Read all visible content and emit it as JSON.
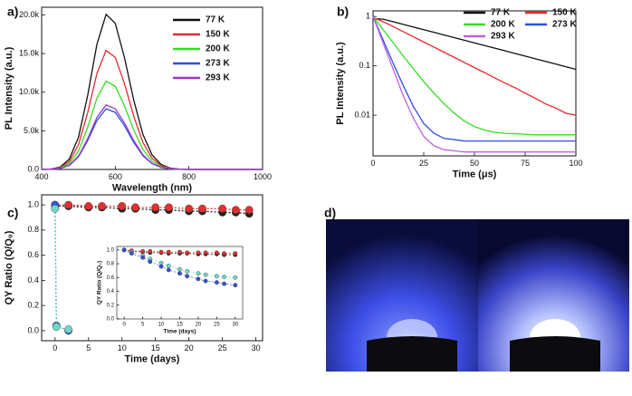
{
  "chart_data": [
    {
      "type": "line",
      "label": "a)",
      "x_label": "Wavelength (nm)",
      "y_label": "PL Intensity (a.u.)",
      "x": [
        400,
        425,
        450,
        475,
        500,
        525,
        550,
        575,
        600,
        625,
        650,
        675,
        700,
        725,
        750,
        775,
        800,
        825,
        850,
        875,
        900,
        925,
        950,
        975,
        1000
      ],
      "xlim": [
        400,
        1000
      ],
      "xticks": [
        400,
        600,
        800,
        1000
      ],
      "ylim": [
        0,
        21000
      ],
      "yticks": [
        {
          "value": 0,
          "label": "0.0"
        },
        {
          "value": 5000,
          "label": "5.0k"
        },
        {
          "value": 10000,
          "label": "10.0k"
        },
        {
          "value": 15000,
          "label": "15.0k"
        },
        {
          "value": 20000,
          "label": "20.0k"
        }
      ],
      "legend": "upper right",
      "series": [
        {
          "name": "77 K",
          "color": "#111111",
          "values": [
            6,
            55,
            311,
            1333,
            4161,
            9575,
            16180,
            20080,
            18907,
            14463,
            8989,
            4545,
            1879,
            626,
            170,
            38,
            0,
            0,
            0,
            0,
            0,
            0,
            0,
            0,
            0
          ]
        },
        {
          "name": "150 K",
          "color": "#e8282b",
          "values": [
            5,
            42,
            239,
            1023,
            3193,
            7347,
            12416,
            15407,
            14508,
            11098,
            6898,
            3488,
            1442,
            481,
            130,
            29,
            0,
            0,
            0,
            0,
            0,
            0,
            0,
            0,
            0
          ]
        },
        {
          "name": "200 K",
          "color": "#33dd22",
          "values": [
            3,
            31,
            177,
            759,
            2369,
            5451,
            9212,
            11431,
            10764,
            8234,
            5118,
            2588,
            1070,
            357,
            97,
            22,
            0,
            0,
            0,
            0,
            0,
            0,
            0,
            0,
            0
          ]
        },
        {
          "name": "273 K",
          "color": "#2c4fe0",
          "values": [
            2,
            21,
            122,
            521,
            1627,
            3745,
            6328,
            7853,
            7394,
            5656,
            3516,
            1778,
            735,
            245,
            66,
            15,
            0,
            0,
            0,
            0,
            0,
            0,
            0,
            0,
            0
          ]
        },
        {
          "name": "293 K",
          "color": "#9b35c9",
          "values": [
            3,
            23,
            129,
            554,
            1730,
            3982,
            6728,
            8350,
            7862,
            6014,
            3738,
            1890,
            781,
            260,
            71,
            16,
            0,
            0,
            0,
            0,
            0,
            0,
            0,
            0,
            0
          ]
        }
      ]
    },
    {
      "type": "line",
      "label": "b)",
      "x_label": "Time (μs)",
      "y_label": "PL Intensity (a.u.)",
      "log_y": true,
      "x": [
        0,
        5,
        10,
        15,
        20,
        25,
        30,
        35,
        40,
        45,
        50,
        55,
        60,
        65,
        70,
        75,
        80,
        85,
        90,
        95,
        100
      ],
      "xlim": [
        0,
        100
      ],
      "xticks": [
        0,
        25,
        50,
        75,
        100
      ],
      "ylim": [
        0.0015,
        1.3
      ],
      "yticks": [
        1,
        0.1,
        0.01
      ],
      "legend": "top",
      "legend_columns": 2,
      "series": [
        {
          "name": "77 K",
          "color": "#111111",
          "values": [
            0.9,
            0.884,
            0.782,
            0.691,
            0.611,
            0.54,
            0.478,
            0.422,
            0.373,
            0.33,
            0.292,
            0.258,
            0.228,
            0.202,
            0.178,
            0.158,
            0.139,
            0.123,
            0.109,
            0.096,
            0.085
          ]
        },
        {
          "name": "150 K",
          "color": "#e8282b",
          "values": [
            0.95,
            0.788,
            0.621,
            0.49,
            0.386,
            0.304,
            0.24,
            0.189,
            0.149,
            0.117,
            0.092,
            0.073,
            0.057,
            0.045,
            0.036,
            0.028,
            0.022,
            0.017,
            0.014,
            0.011,
            0.01
          ]
        },
        {
          "name": "200 K",
          "color": "#33dd22",
          "values": [
            1.0,
            0.539,
            0.291,
            0.157,
            0.086,
            0.048,
            0.028,
            0.017,
            0.011,
            0.0076,
            0.0059,
            0.005,
            0.0045,
            0.0043,
            0.0042,
            0.0041,
            0.004,
            0.004,
            0.004,
            0.004,
            0.004
          ]
        },
        {
          "name": "273 K",
          "color": "#2c4fe0",
          "values": [
            1.0,
            0.332,
            0.111,
            0.039,
            0.0147,
            0.0068,
            0.0043,
            0.0034,
            0.0032,
            0.003,
            0.003,
            0.003,
            0.003,
            0.003,
            0.003,
            0.003,
            0.003,
            0.003,
            0.003,
            0.003,
            0.003
          ]
        },
        {
          "name": "293 K",
          "color": "#c060e0",
          "values": [
            1.0,
            0.288,
            0.084,
            0.0241,
            0.0085,
            0.0037,
            0.0024,
            0.002,
            0.0019,
            0.0018,
            0.0018,
            0.0018,
            0.0018,
            0.0018,
            0.0018,
            0.0018,
            0.0018,
            0.0018,
            0.0018,
            0.0018,
            0.0018
          ]
        }
      ]
    },
    {
      "type": "line",
      "label": "c)",
      "x_label": "Time (days)",
      "y_label": "QY Ratio (Q/Q₀)",
      "markers": true,
      "dashed": true,
      "xlim": [
        -2,
        31
      ],
      "xticks": [
        0,
        5,
        10,
        15,
        20,
        25,
        30
      ],
      "ylim": [
        -0.08,
        1.08
      ],
      "yticks": [
        {
          "value": 0,
          "label": "0.0"
        },
        0.2,
        0.4,
        0.6,
        0.8,
        {
          "value": 1,
          "label": "1.0"
        }
      ],
      "series": [
        {
          "color": "#222222",
          "x": [
            0,
            2,
            5,
            7,
            10,
            12,
            15,
            17,
            20,
            22,
            25,
            27,
            29
          ],
          "values": [
            0.99,
            0.99,
            0.98,
            0.98,
            0.97,
            0.97,
            0.96,
            0.96,
            0.95,
            0.95,
            0.94,
            0.94,
            0.93
          ]
        },
        {
          "color": "#e03030",
          "x": [
            0,
            2,
            5,
            7,
            10,
            12,
            15,
            17,
            20,
            22,
            25,
            27,
            29
          ],
          "values": [
            1.0,
            1.0,
            0.99,
            0.99,
            0.99,
            0.98,
            0.98,
            0.98,
            0.97,
            0.97,
            0.97,
            0.96,
            0.96
          ]
        },
        {
          "color": "#3a4fd0",
          "x": [
            0,
            0.2,
            2
          ],
          "values": [
            1.0,
            0.04,
            0.0
          ]
        },
        {
          "color": "#6fd8c8",
          "x": [
            0,
            0.2,
            2
          ],
          "values": [
            0.97,
            0.03,
            0.01
          ]
        }
      ]
    },
    {
      "type": "line",
      "x_label": "Time (days)",
      "y_label": "QY Ratio (Q/Q₀)",
      "markers": true,
      "dashed": true,
      "xlim": [
        -2,
        32
      ],
      "xticks": [
        0,
        5,
        10,
        15,
        20,
        25,
        30
      ],
      "ylim": [
        0,
        1.05
      ],
      "yticks": [
        {
          "value": 0,
          "label": "0.0"
        },
        0.2,
        0.4,
        0.6,
        0.8,
        {
          "value": 1,
          "label": "1.0"
        }
      ],
      "series": [
        {
          "color": "#222222",
          "x": [
            0,
            2,
            5,
            7,
            10,
            12,
            15,
            17,
            20,
            22,
            25,
            27,
            30
          ],
          "values": [
            1.0,
            0.98,
            0.97,
            0.96,
            0.96,
            0.95,
            0.95,
            0.95,
            0.94,
            0.94,
            0.94,
            0.93,
            0.93
          ]
        },
        {
          "color": "#e03030",
          "x": [
            0,
            2,
            5,
            7,
            10,
            12,
            15,
            17,
            20,
            22,
            25,
            27,
            30
          ],
          "values": [
            1.0,
            0.99,
            0.98,
            0.98,
            0.97,
            0.97,
            0.97,
            0.96,
            0.96,
            0.96,
            0.96,
            0.95,
            0.95
          ]
        },
        {
          "color": "#6fd8c8",
          "x": [
            0,
            2,
            5,
            7,
            10,
            12,
            15,
            17,
            20,
            22,
            25,
            27,
            30
          ],
          "values": [
            1.0,
            0.97,
            0.92,
            0.87,
            0.81,
            0.77,
            0.72,
            0.69,
            0.66,
            0.64,
            0.62,
            0.61,
            0.6
          ]
        },
        {
          "color": "#3a4fd0",
          "x": [
            0,
            2,
            5,
            7,
            10,
            12,
            15,
            17,
            20,
            22,
            25,
            27,
            30
          ],
          "values": [
            1.0,
            0.95,
            0.89,
            0.83,
            0.76,
            0.71,
            0.66,
            0.62,
            0.58,
            0.55,
            0.53,
            0.51,
            0.49
          ]
        }
      ]
    },
    {
      "type": "image",
      "label": "d)"
    }
  ]
}
